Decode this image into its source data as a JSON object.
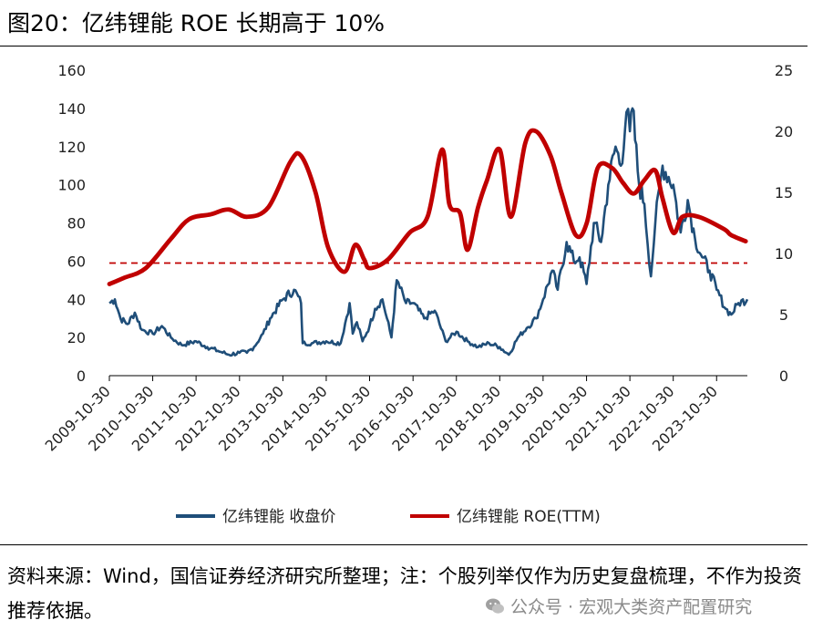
{
  "title": "图20：亿纬锂能 ROE 长期高于 10%",
  "source_note": "资料来源：Wind，国信证券经济研究所整理；注：个股列举仅作为历史复盘梳理，不作为投资推荐依据。",
  "watermark": "公众号 · 宏观大类资产配置研究",
  "watermark_icon": "wechat-icon",
  "colors": {
    "price": "#1f4e79",
    "roe": "#c00000",
    "threshold": "#c00000"
  },
  "chart_data": {
    "type": "line",
    "title": "",
    "xlabel": "",
    "ylabel": "",
    "y_left_lim": [
      0,
      160
    ],
    "y_right_lim": [
      0,
      25
    ],
    "y_left_ticks": [
      "0",
      "20",
      "40",
      "60",
      "80",
      "100",
      "120",
      "140",
      "160"
    ],
    "y_right_ticks": [
      "0",
      "5",
      "10",
      "15",
      "20",
      "25"
    ],
    "x_ticks": [
      "2009-10-30",
      "2010-10-30",
      "2011-10-30",
      "2012-10-30",
      "2013-10-30",
      "2014-10-30",
      "2015-10-30",
      "2016-10-30",
      "2017-10-30",
      "2018-10-30",
      "2019-10-30",
      "2020-10-30",
      "2021-10-30",
      "2022-10-30",
      "2023-10-30"
    ],
    "x_range": [
      "2009-10-30",
      "2024-07-15"
    ],
    "grid": false,
    "legend_position": "bottom",
    "threshold": {
      "value": 59,
      "axis": "left",
      "style": "dashed"
    },
    "series": [
      {
        "name": "亿纬锂能 收盘价",
        "axis": "left",
        "x": [
          "2009-10-30",
          "2009-12-15",
          "2010-02-01",
          "2010-04-01",
          "2010-06-01",
          "2010-08-01",
          "2010-10-30",
          "2011-01-15",
          "2011-04-01",
          "2011-07-01",
          "2011-10-30",
          "2012-02-01",
          "2012-05-01",
          "2012-08-01",
          "2012-10-30",
          "2012-12-31",
          "2013-03-01",
          "2013-05-15",
          "2013-07-15",
          "2013-10-30",
          "2014-02-01",
          "2014-04-01",
          "2014-04-15",
          "2014-07-01",
          "2014-10-30",
          "2015-03-01",
          "2015-05-15",
          "2015-06-10",
          "2015-07-15",
          "2015-09-01",
          "2015-10-30",
          "2015-12-15",
          "2016-02-15",
          "2016-05-01",
          "2016-06-15",
          "2016-09-01",
          "2016-10-30",
          "2017-02-01",
          "2017-05-01",
          "2017-08-01",
          "2017-10-30",
          "2018-02-01",
          "2018-05-01",
          "2018-08-01",
          "2018-10-30",
          "2019-01-15",
          "2019-04-01",
          "2019-06-15",
          "2019-09-01",
          "2019-10-30",
          "2020-01-15",
          "2020-03-01",
          "2020-05-15",
          "2020-07-15",
          "2020-09-01",
          "2020-10-30",
          "2020-12-31",
          "2021-03-01",
          "2021-05-01",
          "2021-07-01",
          "2021-08-15",
          "2021-10-01",
          "2021-10-30",
          "2021-11-20",
          "2022-01-15",
          "2022-03-01",
          "2022-04-25",
          "2022-06-01",
          "2022-08-01",
          "2022-10-30",
          "2022-12-31",
          "2023-03-01",
          "2023-05-01",
          "2023-07-01",
          "2023-09-01",
          "2023-10-30",
          "2024-01-15",
          "2024-03-01",
          "2024-05-01",
          "2024-07-15"
        ],
        "values": [
          38,
          40,
          30,
          27,
          33,
          24,
          22,
          26,
          20,
          16,
          18,
          15,
          13,
          11,
          12,
          12,
          15,
          22,
          30,
          40,
          45,
          38,
          17,
          17,
          18,
          17,
          38,
          22,
          28,
          18,
          26,
          35,
          40,
          20,
          50,
          38,
          38,
          30,
          34,
          18,
          23,
          18,
          15,
          17,
          15,
          11,
          20,
          25,
          30,
          40,
          55,
          45,
          70,
          60,
          62,
          48,
          80,
          70,
          100,
          120,
          110,
          138,
          128,
          140,
          100,
          90,
          52,
          80,
          110,
          100,
          75,
          92,
          72,
          62,
          55,
          45,
          35,
          32,
          38,
          40
        ]
      },
      {
        "name": "亿纬锂能 ROE(TTM)",
        "axis": "right",
        "x": [
          "2009-10-30",
          "2010-03-01",
          "2010-09-01",
          "2011-04-01",
          "2011-09-01",
          "2012-03-01",
          "2012-08-01",
          "2013-01-01",
          "2013-07-01",
          "2014-01-01",
          "2014-04-01",
          "2014-08-01",
          "2014-11-15",
          "2015-04-01",
          "2015-07-01",
          "2015-09-15",
          "2015-11-01",
          "2016-04-01",
          "2016-10-01",
          "2017-03-01",
          "2017-07-01",
          "2017-09-01",
          "2017-11-30",
          "2018-02-01",
          "2018-05-01",
          "2018-07-15",
          "2018-10-30",
          "2019-02-01",
          "2019-06-01",
          "2019-09-01",
          "2020-01-01",
          "2020-04-01",
          "2020-08-01",
          "2020-11-01",
          "2021-02-01",
          "2021-06-01",
          "2021-09-01",
          "2021-12-01",
          "2022-03-01",
          "2022-06-01",
          "2022-08-01",
          "2022-10-30",
          "2023-01-15",
          "2023-06-01",
          "2023-12-31",
          "2024-03-01",
          "2024-07-01"
        ],
        "values": [
          7.5,
          8.0,
          8.8,
          11.2,
          12.8,
          13.2,
          13.6,
          13.0,
          13.8,
          17.5,
          18.0,
          15.0,
          10.5,
          8.5,
          10.7,
          9.5,
          8.8,
          9.5,
          11.7,
          13.0,
          18.5,
          14.0,
          13.3,
          10.3,
          13.8,
          16.0,
          18.5,
          13.0,
          19.0,
          20.0,
          18.0,
          15.0,
          11.5,
          12.5,
          17.0,
          17.0,
          15.8,
          14.9,
          16.0,
          16.8,
          14.5,
          11.7,
          13.0,
          13.0,
          12.0,
          11.5,
          11.0
        ]
      }
    ]
  }
}
